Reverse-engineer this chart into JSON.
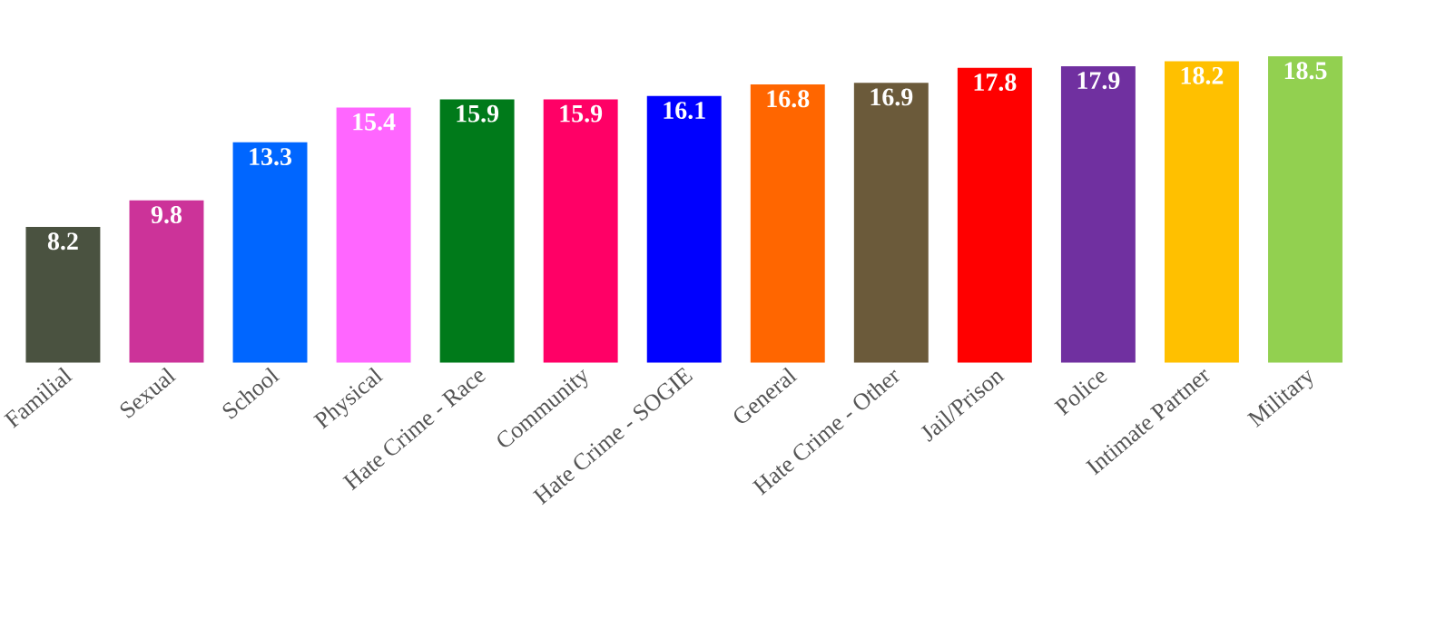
{
  "chart_data": {
    "type": "bar",
    "categories": [
      "Familial",
      "Sexual",
      "School",
      "Physical",
      "Hate Crime - Race",
      "Community",
      "Hate Crime - SOGIE",
      "General",
      "Hate Crime - Other",
      "Jail/Prison",
      "Police",
      "Intimate Partner",
      "Military"
    ],
    "values": [
      8.2,
      9.8,
      13.3,
      15.4,
      15.9,
      15.9,
      16.1,
      16.8,
      16.9,
      17.8,
      17.9,
      18.2,
      18.5
    ],
    "colors": [
      "#4a5240",
      "#cc3399",
      "#0066ff",
      "#ff66ff",
      "#007a1a",
      "#ff0066",
      "#0000ff",
      "#ff6600",
      "#6b5a3a",
      "#ff0000",
      "#7030a0",
      "#ffc000",
      "#92d050"
    ],
    "data_labels": true
  }
}
